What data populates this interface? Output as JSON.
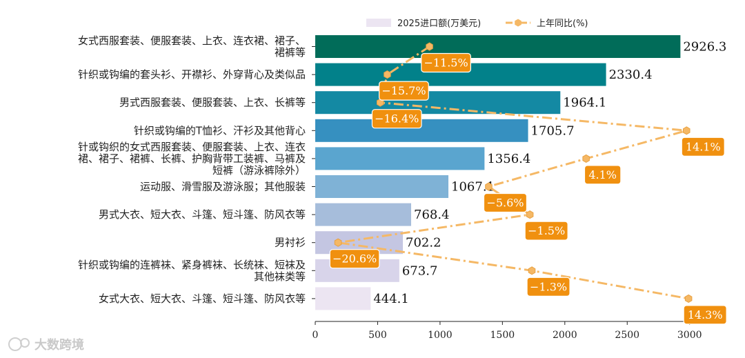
{
  "watermark": "大数跨境",
  "chart_data": {
    "type": "bar",
    "orientation": "horizontal",
    "categories": [
      "女式西服套装、便服套装、上衣、连衣裙、裙子、\n裙裤等",
      "针织或钩编的套头衫、开襟衫、外穿背心及类似品",
      "男式西服套装、便服套装、上衣、长裤等",
      "针织或钩编的T恤衫、汗衫及其他背心",
      "针或钩织的女式西服套装、便服套装、上衣、连衣\n裙、裙子、裙裤、长裤、护胸背带工装裤、马裤及\n短裤（游泳裤除外）",
      "运动服、滑雪服及游泳服；其他服装",
      "男式大衣、短大衣、斗篷、短斗篷、防风衣等",
      "男衬衫",
      "针织或钩编的连裤袜、紧身裤袜、长统袜、短袜及\n其他袜类等",
      "女式大衣、短大衣、斗篷、短斗篷、防风衣等"
    ],
    "series": [
      {
        "name": "2025进口额(万美元)",
        "values": [
          2926.3,
          2330.4,
          1964.1,
          1705.7,
          1356.4,
          1067.1,
          768.4,
          702.2,
          673.7,
          444.1
        ],
        "value_labels": [
          "2926.3",
          "2330.4",
          "1964.1",
          "1705.7",
          "1356.4",
          "1067.1",
          "768.4",
          "702.2",
          "673.7",
          "444.1"
        ],
        "colors": [
          "#016c59",
          "#02818a",
          "#1489a3",
          "#3690c0",
          "#5aa5cf",
          "#7fb2d6",
          "#a6bddb",
          "#c4c6e2",
          "#d8d4ea",
          "#ece5f2"
        ]
      },
      {
        "name": "上年同比(%)",
        "style": "dash-dot line with hexagon markers",
        "color": "#f5b865",
        "label_color": "#f0900f",
        "values": [
          -11.5,
          -15.7,
          -16.4,
          14.1,
          4.1,
          -5.6,
          -1.5,
          -20.6,
          -1.3,
          14.3
        ],
        "value_labels": [
          "−11.5%",
          "−15.7%",
          "−16.4%",
          "14.1%",
          "4.1%",
          "−5.6%",
          "−1.5%",
          "−20.6%",
          "−1.3%",
          "14.3%"
        ],
        "y_range": [
          -21.5,
          15.8
        ]
      }
    ],
    "x_ticks": [
      0,
      500,
      1000,
      1500,
      2000,
      2500,
      3000
    ],
    "xlim": [
      0,
      3100
    ],
    "grid": false,
    "legend_position": "top-center"
  }
}
